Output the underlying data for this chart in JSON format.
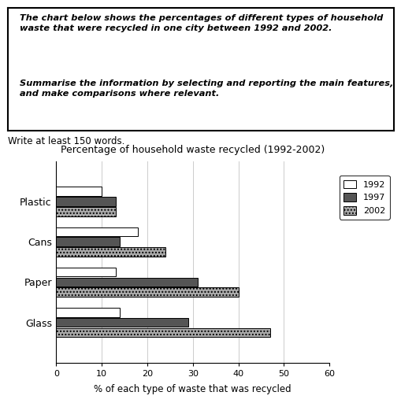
{
  "title": "Percentage of household waste recycled (1992-2002)",
  "xlabel": "% of each type of waste that was recycled",
  "categories": [
    "Glass",
    "Paper",
    "Cans",
    "Plastic"
  ],
  "years": [
    "1992",
    "1997",
    "2002"
  ],
  "values": {
    "Glass": [
      14,
      29,
      47
    ],
    "Paper": [
      13,
      31,
      40
    ],
    "Cans": [
      18,
      14,
      24
    ],
    "Plastic": [
      10,
      13,
      13
    ]
  },
  "bar_colors": [
    "#ffffff",
    "#555555",
    "#aaaaaa"
  ],
  "bar_edgecolors": [
    "#000000",
    "#000000",
    "#000000"
  ],
  "bar_hatches": [
    "",
    "",
    "...."
  ],
  "legend_labels": [
    "1992",
    "1997",
    "2002"
  ],
  "legend_colors": [
    "#ffffff",
    "#555555",
    "#aaaaaa"
  ],
  "legend_hatches": [
    "",
    "",
    "...."
  ],
  "xlim": [
    0,
    60
  ],
  "xticks": [
    0,
    10,
    20,
    30,
    40,
    50,
    60
  ],
  "header_text1": "The chart below shows the percentages of different types of household\nwaste that were recycled in one city between 1992 and 2002.",
  "header_text2": "Summarise the information by selecting and reporting the main features,\nand make comparisons where relevant.",
  "footer_text": "Write at least 150 words.",
  "fig_width": 5.1,
  "fig_height": 5.12,
  "dpi": 100
}
